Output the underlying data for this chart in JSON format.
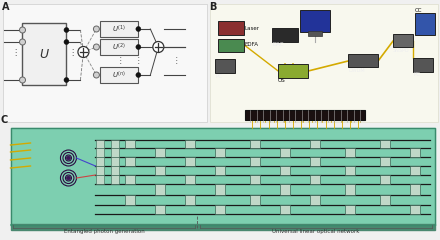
{
  "bg_color": "#f0f0f0",
  "label_A": "A",
  "label_B": "B",
  "label_C": "C",
  "chip_top_color": "#7dcfb0",
  "chip_side_color": "#5aab8c",
  "chip_edge_color": "#3a8a6c",
  "bottom_labels": [
    "Entangled photon generation",
    "Universal linear optical network"
  ],
  "equip_laser_color": "#8b3030",
  "equip_edfa_color": "#4a8a50",
  "equip_dac_color": "#2a2a2a",
  "equip_pc_color": "#444444",
  "equip_os_color": "#8aaa30",
  "equip_snspd_color": "#555555",
  "equip_dwdm_color": "#444444",
  "equip_cc_color": "#3355aa",
  "monitor_color": "#223399",
  "fiber_yellow": "#d4aa00",
  "wire_gray": "#888888",
  "connector_color": "#2a2020",
  "mzi_fill": "#c0d8c8",
  "mzi_edge": "#3a6655",
  "waveguide_color": "#1a1a1a",
  "spiral_color": "#3a1555",
  "panel_bg_b": "#f8f8ee"
}
